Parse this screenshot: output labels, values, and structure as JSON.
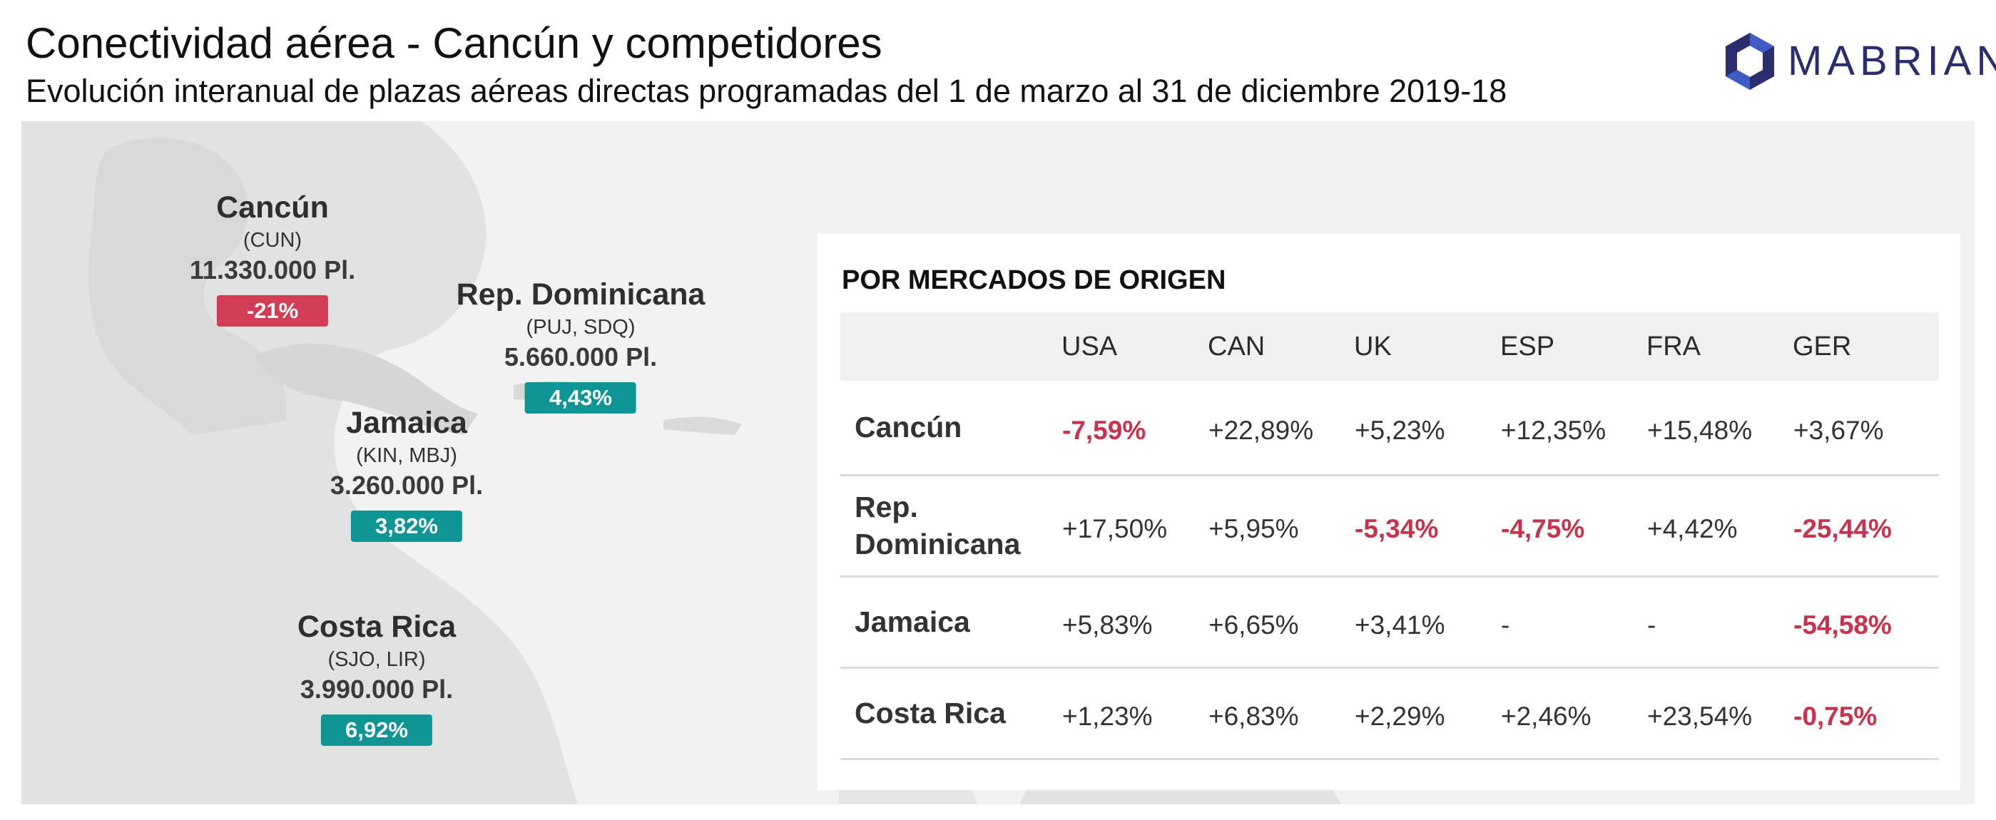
{
  "header": {
    "title": "Conectividad aérea - Cancún y competidores",
    "subtitle": "Evolución interanual de plazas aéreas directas programadas del 1 de marzo al 31 de diciembre 2019-18"
  },
  "logo": {
    "text": "MABRIAN",
    "icon": "mabrian-hexagon-icon",
    "color": "#2a2d6e"
  },
  "colors": {
    "negative": "#d23c54",
    "positive": "#0e9594",
    "map_land": "#e2e2e2",
    "panel_bg": "#f2f2f2"
  },
  "destinations": [
    {
      "name": "Cancún",
      "codes": "(CUN)",
      "seats": "11.330.000 Pl.",
      "change": "-21%",
      "trend": "negative"
    },
    {
      "name": "Rep. Dominicana",
      "codes": "(PUJ, SDQ)",
      "seats": "5.660.000 Pl.",
      "change": "4,43%",
      "trend": "positive"
    },
    {
      "name": "Jamaica",
      "codes": "(KIN, MBJ)",
      "seats": "3.260.000 Pl.",
      "change": "3,82%",
      "trend": "positive"
    },
    {
      "name": "Costa Rica",
      "codes": "(SJO, LIR)",
      "seats": "3.990.000 Pl.",
      "change": "6,92%",
      "trend": "positive"
    }
  ],
  "markets_table": {
    "title": "POR MERCADOS DE ORIGEN",
    "columns": [
      "USA",
      "CAN",
      "UK",
      "ESP",
      "FRA",
      "GER"
    ],
    "rows": [
      {
        "label": "Cancún",
        "values": [
          "-7,59%",
          "+22,89%",
          "+5,23%",
          "+12,35%",
          "+15,48%",
          "+3,67%"
        ]
      },
      {
        "label": "Rep.\nDominicana",
        "values": [
          "+17,50%",
          "+5,95%",
          "-5,34%",
          "-4,75%",
          "+4,42%",
          "-25,44%"
        ]
      },
      {
        "label": "Jamaica",
        "values": [
          "+5,83%",
          "+6,65%",
          "+3,41%",
          "-",
          "-",
          "-54,58%"
        ]
      },
      {
        "label": "Costa Rica",
        "values": [
          "+1,23%",
          "+6,83%",
          "+2,29%",
          "+2,46%",
          "+23,54%",
          "-0,75%"
        ]
      }
    ]
  }
}
